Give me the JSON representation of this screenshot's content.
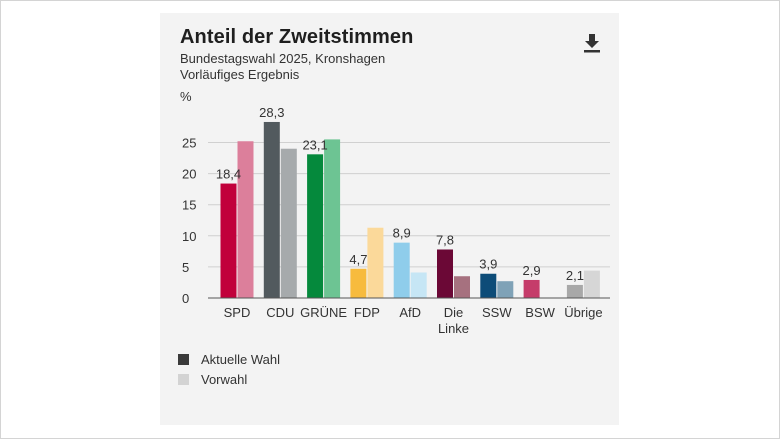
{
  "header": {
    "title": "Anteil der Zweitstimmen",
    "subtitle_1": "Bundestagswahl 2025, Kronshagen",
    "subtitle_2": "Vorläufiges Ergebnis",
    "download_icon": "download-icon"
  },
  "legend": {
    "current": {
      "label": "Aktuelle Wahl",
      "color": "#3a3a3a"
    },
    "previous": {
      "label": "Vorwahl",
      "color": "#d3d3d3"
    }
  },
  "chart_data": {
    "type": "bar",
    "ylabel": "%",
    "ylim": [
      0,
      30
    ],
    "yticks": [
      0,
      5,
      10,
      15,
      20,
      25
    ],
    "grid": true,
    "categories": [
      "SPD",
      "CDU",
      "GRÜNE",
      "FDP",
      "AfD",
      "Die Linke",
      "SSW",
      "BSW",
      "Übrige"
    ],
    "category_lines": [
      [
        "SPD"
      ],
      [
        "CDU"
      ],
      [
        "GRÜNE"
      ],
      [
        "FDP"
      ],
      [
        "AfD"
      ],
      [
        "Die",
        "Linke"
      ],
      [
        "SSW"
      ],
      [
        "BSW"
      ],
      [
        "Übrige"
      ]
    ],
    "series": [
      {
        "name": "Aktuelle Wahl",
        "values": [
          18.4,
          28.3,
          23.1,
          4.7,
          8.9,
          7.8,
          3.9,
          2.9,
          2.1
        ],
        "labels": [
          "18,4",
          "28,3",
          "23,1",
          "4,7",
          "8,9",
          "7,8",
          "3,9",
          "2,9",
          "2,1"
        ]
      },
      {
        "name": "Vorwahl",
        "values": [
          25.2,
          24.0,
          25.5,
          11.3,
          4.1,
          3.5,
          2.7,
          null,
          4.4
        ]
      }
    ],
    "colors_current": [
      "#c1003b",
      "#525a5e",
      "#05893c",
      "#f7bb3d",
      "#8fcdeb",
      "#6b0836",
      "#0d4c78",
      "#c53c6a",
      "#a8a8a8"
    ],
    "colors_previous": [
      "#dc7f9b",
      "#a6aaac",
      "#6dc493",
      "#fbd99a",
      "#c6e6f5",
      "#a6717f",
      "#7fa2b7",
      "#e0a0b5",
      "#d6d6d6"
    ]
  }
}
